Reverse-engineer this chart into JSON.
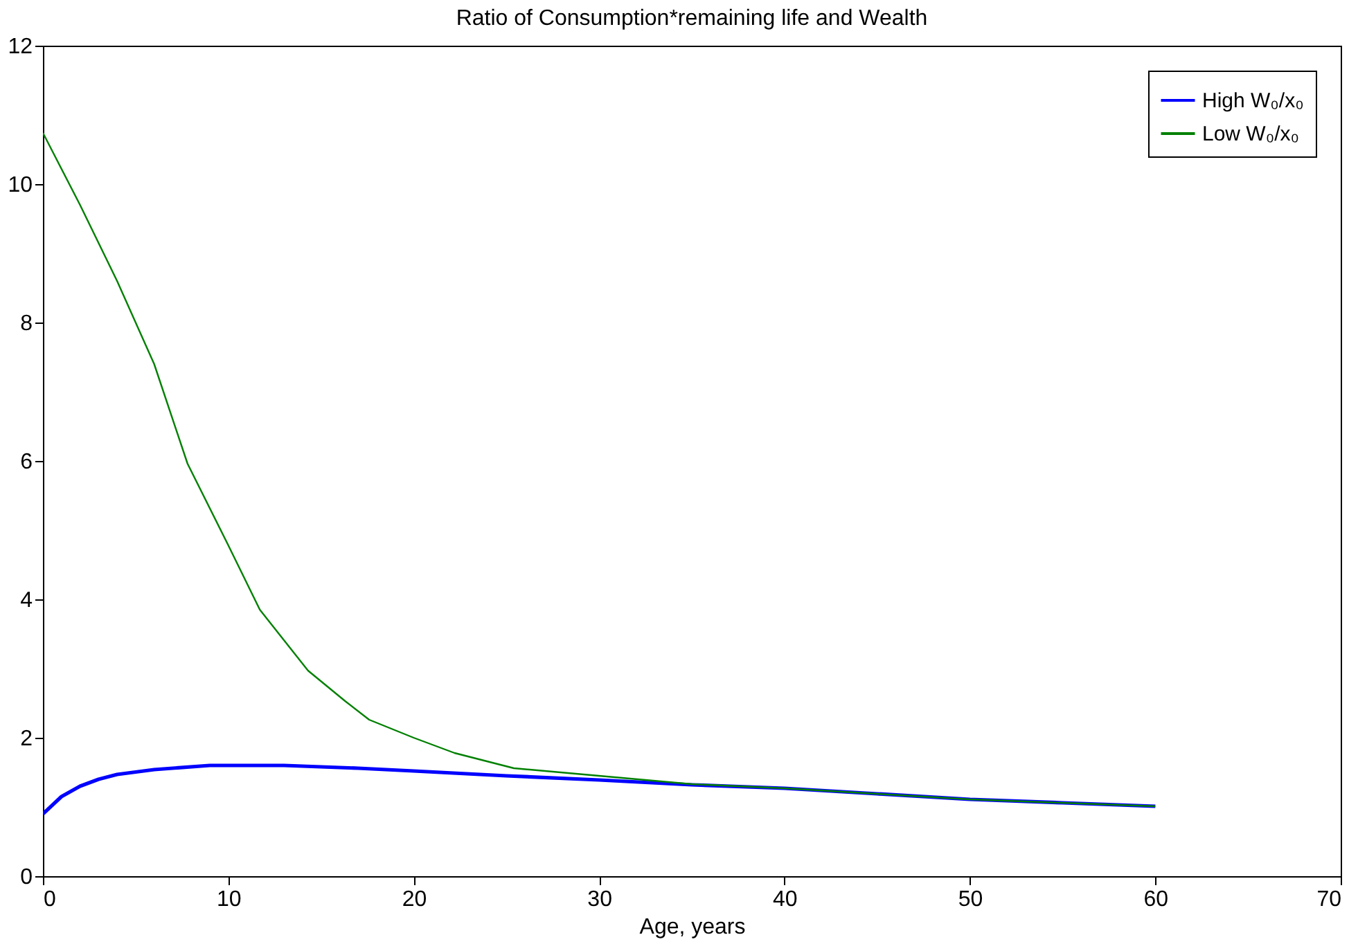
{
  "chart_data": {
    "type": "line",
    "title": "Ratio of Consumption*remaining life and Wealth",
    "xlabel": "Age, years",
    "xlim": [
      0,
      70
    ],
    "xticks": [
      0,
      10,
      20,
      30,
      40,
      50,
      60,
      70
    ],
    "ylim": [
      0,
      12
    ],
    "yticks": [
      0,
      2,
      4,
      6,
      8,
      10,
      12
    ],
    "grid": false,
    "legend": "top right",
    "series": [
      {
        "name": "High W₀/x₀",
        "color": "#0000ff",
        "x": [
          0,
          1,
          2,
          3,
          4,
          6,
          9,
          13,
          17,
          20,
          25,
          30,
          35,
          40,
          45,
          50,
          55,
          60
        ],
        "values": [
          0.9,
          1.15,
          1.3,
          1.4,
          1.47,
          1.54,
          1.6,
          1.6,
          1.56,
          1.52,
          1.45,
          1.39,
          1.32,
          1.27,
          1.19,
          1.11,
          1.06,
          1.01
        ]
      },
      {
        "name": "Low W₀/x₀",
        "color": "#008000",
        "x": [
          0,
          2,
          4,
          6,
          7.8,
          10,
          11.7,
          14.3,
          16.3,
          17.6,
          20,
          22.2,
          25.4,
          30,
          35,
          40,
          45,
          50,
          55,
          60
        ],
        "values": [
          10.74,
          9.7,
          8.6,
          7.4,
          5.96,
          4.78,
          3.85,
          2.97,
          2.53,
          2.26,
          2.0,
          1.78,
          1.56,
          1.45,
          1.33,
          1.27,
          1.19,
          1.11,
          1.06,
          1.01
        ]
      }
    ]
  }
}
